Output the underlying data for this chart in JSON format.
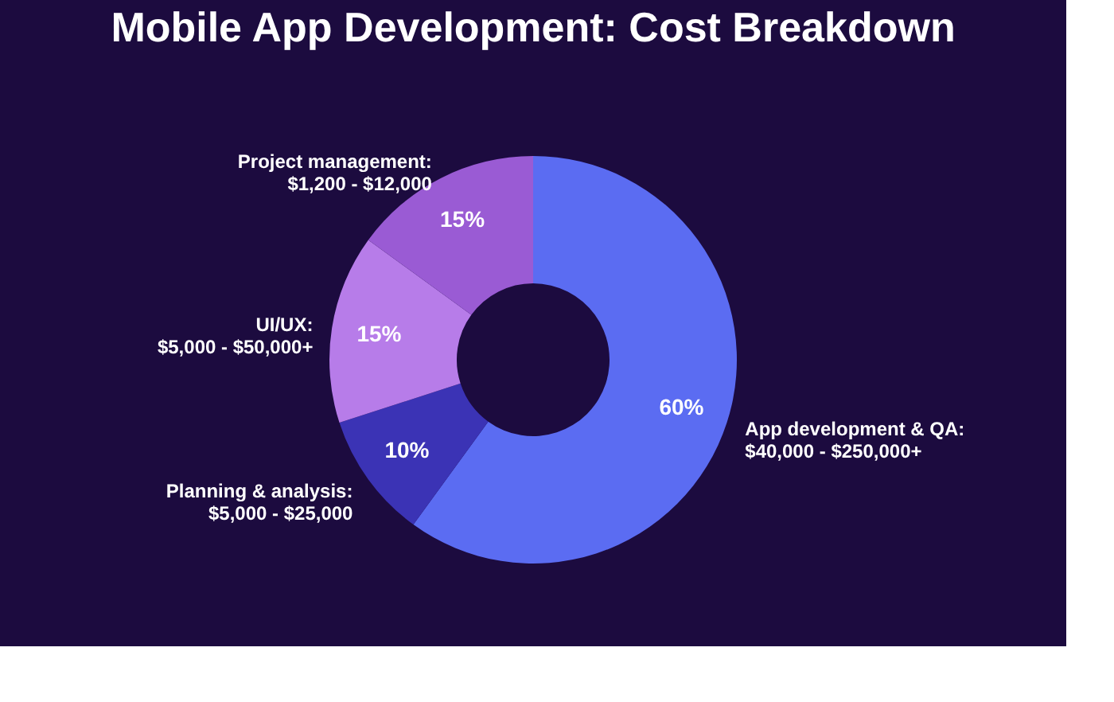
{
  "chart_data": {
    "type": "donut",
    "title": "Mobile App Development: Cost Breakdown",
    "categories": [
      "App development & QA:\n$40,000 - $250,000+",
      "Planning & analysis:\n$5,000 - $25,000",
      "UI/UX:\n$5,000 - $50,000+",
      "Project management:\n$1,200 - $12,000"
    ],
    "values": [
      60,
      10,
      15,
      15
    ],
    "colors": [
      "#5b6cf2",
      "#3b33b5",
      "#b77ce9",
      "#9a5bd4"
    ],
    "value_labels": [
      "60%",
      "10%",
      "15%",
      "15%"
    ]
  }
}
